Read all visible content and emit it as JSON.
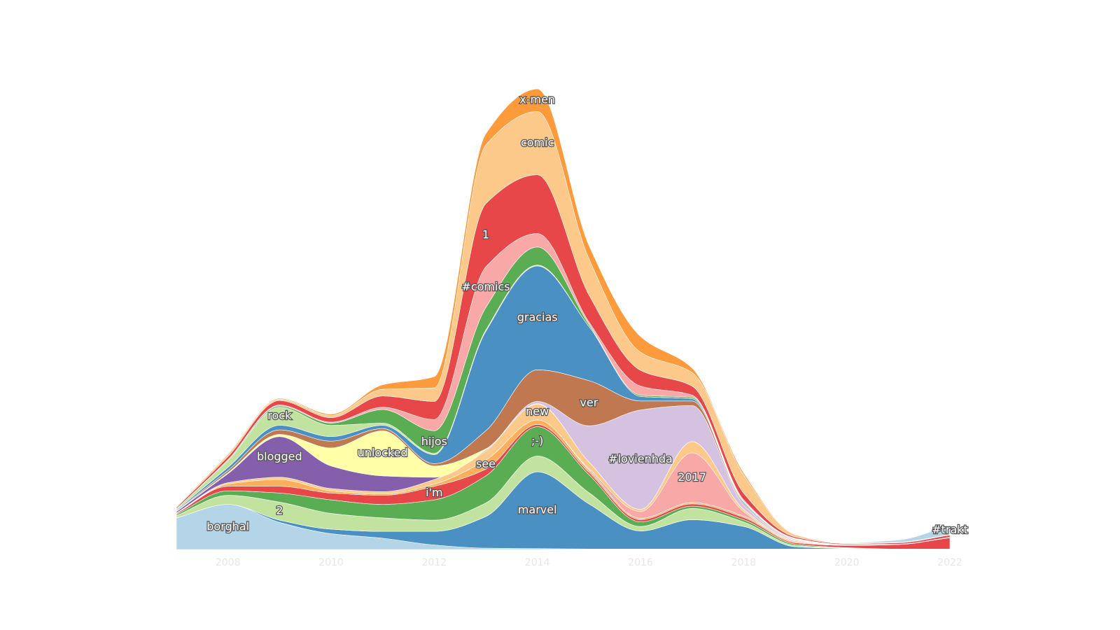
{
  "chart_data": {
    "type": "streamgraph",
    "x": [
      2007,
      2008,
      2009,
      2010,
      2011,
      2012,
      2013,
      2014,
      2015,
      2016,
      2017,
      2018,
      2019,
      2020,
      2021,
      2022
    ],
    "xlim": [
      2007,
      2022
    ],
    "xticks": [
      2008,
      2010,
      2012,
      2014,
      2016,
      2018,
      2020,
      2022
    ],
    "ylim": [
      0,
      100
    ],
    "series": [
      {
        "name": "borghal",
        "color": "#b4d4e7",
        "values": [
          7,
          10,
          6,
          3.5,
          2.5,
          1,
          0.3,
          0.2,
          0.1,
          0.1,
          0.1,
          0.1,
          0.1,
          0.1,
          0,
          0
        ]
      },
      {
        "name": "marvel",
        "color": "#4a90c2",
        "values": [
          0,
          0,
          0.5,
          1,
          1.5,
          3,
          7,
          17,
          10,
          4,
          6.5,
          5,
          0.5,
          0.1,
          0,
          0
        ]
      },
      {
        "name": "2",
        "color": "#c2e3a0",
        "values": [
          0.5,
          2,
          4,
          3.5,
          3,
          2.5,
          3,
          3.5,
          2.5,
          1,
          2.5,
          1,
          0.3,
          0.1,
          0,
          0
        ]
      },
      {
        "name": ";-)",
        "color": "#5aad52",
        "values": [
          0.3,
          1,
          2,
          3,
          3,
          4.5,
          6,
          6.5,
          4,
          1,
          0.5,
          0.5,
          0.3,
          0.1,
          0.1,
          0.1
        ]
      },
      {
        "name": "i'm",
        "color": "#e8474a",
        "values": [
          0.2,
          1,
          1.5,
          1.5,
          2,
          3,
          1.5,
          0.5,
          0.5,
          0.5,
          0.5,
          0.5,
          0.3,
          0.5,
          1,
          2.5
        ]
      },
      {
        "name": "see",
        "color": "#fdae5a",
        "values": [
          0.1,
          0.5,
          1.5,
          0.5,
          0.3,
          0.5,
          2,
          1,
          0.5,
          0.3,
          0.3,
          0.3,
          0.2,
          0.1,
          0.1,
          0.1
        ]
      },
      {
        "name": "2017",
        "color": "#f9a8a8",
        "values": [
          0,
          0,
          0,
          0,
          0,
          0,
          0,
          0,
          0.3,
          1.5,
          11,
          1,
          0.2,
          0,
          0,
          0
        ]
      },
      {
        "name": "new",
        "color": "#fdc98a",
        "values": [
          0,
          0.3,
          0.5,
          0.5,
          0.5,
          1,
          2,
          3.5,
          1.5,
          0.5,
          2.5,
          0.5,
          0.2,
          0.1,
          0,
          0
        ]
      },
      {
        "name": "blogged",
        "color": "#8460ac",
        "values": [
          0.3,
          2,
          9,
          5,
          3.5,
          0.5,
          0.2,
          0.1,
          0,
          0,
          0,
          0,
          0,
          0,
          0,
          0
        ]
      },
      {
        "name": "unlocked",
        "color": "#ffffa8",
        "values": [
          0,
          0.2,
          0.5,
          4,
          10,
          2.5,
          0.3,
          0,
          0,
          0,
          0,
          0,
          0,
          0,
          0,
          0
        ]
      },
      {
        "name": "#lovienhda",
        "color": "#d5c2e0",
        "values": [
          0,
          0,
          0,
          0,
          0,
          0,
          0,
          0.5,
          8,
          22,
          8,
          1,
          0.2,
          0,
          0,
          0
        ]
      },
      {
        "name": "ver",
        "color": "#c07850",
        "values": [
          0.1,
          0.5,
          1,
          1.5,
          0.5,
          0.5,
          4,
          7,
          10,
          2,
          1,
          0.3,
          0.1,
          0,
          0,
          0
        ]
      },
      {
        "name": "gracias",
        "color": "#4a90c2",
        "values": [
          0.2,
          0.7,
          1,
          1,
          0.7,
          2,
          22,
          23,
          12,
          1,
          0.5,
          0.3,
          0.1,
          0,
          0,
          0
        ]
      },
      {
        "name": "rock",
        "color": "#c2e3a0",
        "values": [
          0.3,
          1.5,
          4,
          2.5,
          0.5,
          0.3,
          0.3,
          0.2,
          0,
          0,
          0,
          0,
          0,
          0,
          0,
          0
        ]
      },
      {
        "name": "hijos",
        "color": "#5aad52",
        "values": [
          0,
          0.2,
          0.3,
          0.5,
          3,
          5,
          5,
          4,
          0.5,
          0.3,
          0.3,
          0.2,
          0,
          0,
          0,
          0
        ]
      },
      {
        "name": "#comics",
        "color": "#f9a8a8",
        "values": [
          0,
          0,
          0.2,
          0.2,
          0.5,
          2.5,
          9,
          3,
          0.5,
          2,
          0.5,
          0.3,
          0,
          0,
          0,
          0
        ]
      },
      {
        "name": "1",
        "color": "#e8474a",
        "values": [
          0.3,
          0.7,
          1,
          1,
          2.5,
          4,
          14,
          13,
          6,
          3.5,
          2,
          1.5,
          0.3,
          0.2,
          0.3,
          0.5
        ]
      },
      {
        "name": "comic",
        "color": "#fdc98a",
        "values": [
          0.2,
          0.5,
          0.3,
          0.5,
          1.5,
          3,
          13,
          14,
          8,
          4,
          3,
          4,
          0.5,
          0.1,
          0.1,
          0.1
        ]
      },
      {
        "name": "x-men",
        "color": "#fd9a3c",
        "values": [
          0,
          0.2,
          0.2,
          0.3,
          1,
          2.5,
          2.5,
          5,
          3,
          3.5,
          1,
          0.5,
          0.1,
          0,
          0,
          0
        ]
      },
      {
        "name": "#trakt",
        "color": "#b4d4e7",
        "values": [
          0,
          0,
          0,
          0,
          0,
          0,
          0,
          0,
          0,
          0,
          0,
          0,
          0,
          0.1,
          0.5,
          2
        ]
      }
    ]
  }
}
